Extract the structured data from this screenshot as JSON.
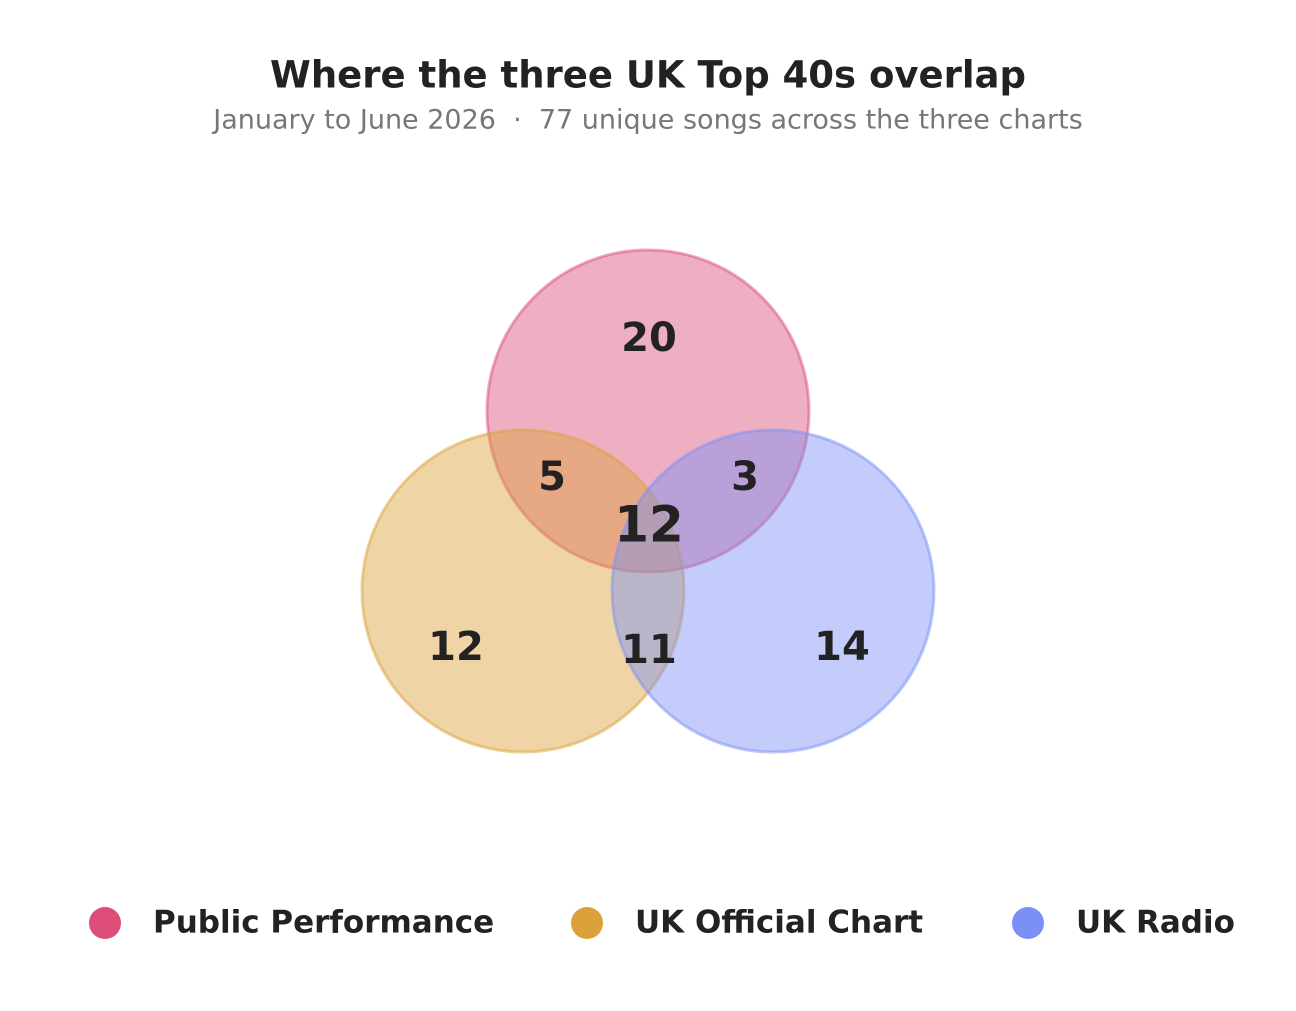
{
  "chart_data": {
    "type": "venn",
    "title": "Where the three UK Top 40s overlap",
    "subtitle": "January to June 2026  ·  77 unique songs across the three charts",
    "sets": [
      {
        "name": "Public Performance",
        "color": "#dc4d78"
      },
      {
        "name": "UK Official Chart",
        "color": "#dba13a"
      },
      {
        "name": "UK Radio",
        "color": "#7b8ff5"
      }
    ],
    "values": [
      20,
      12,
      14,
      5,
      3,
      11,
      12
    ]
  }
}
